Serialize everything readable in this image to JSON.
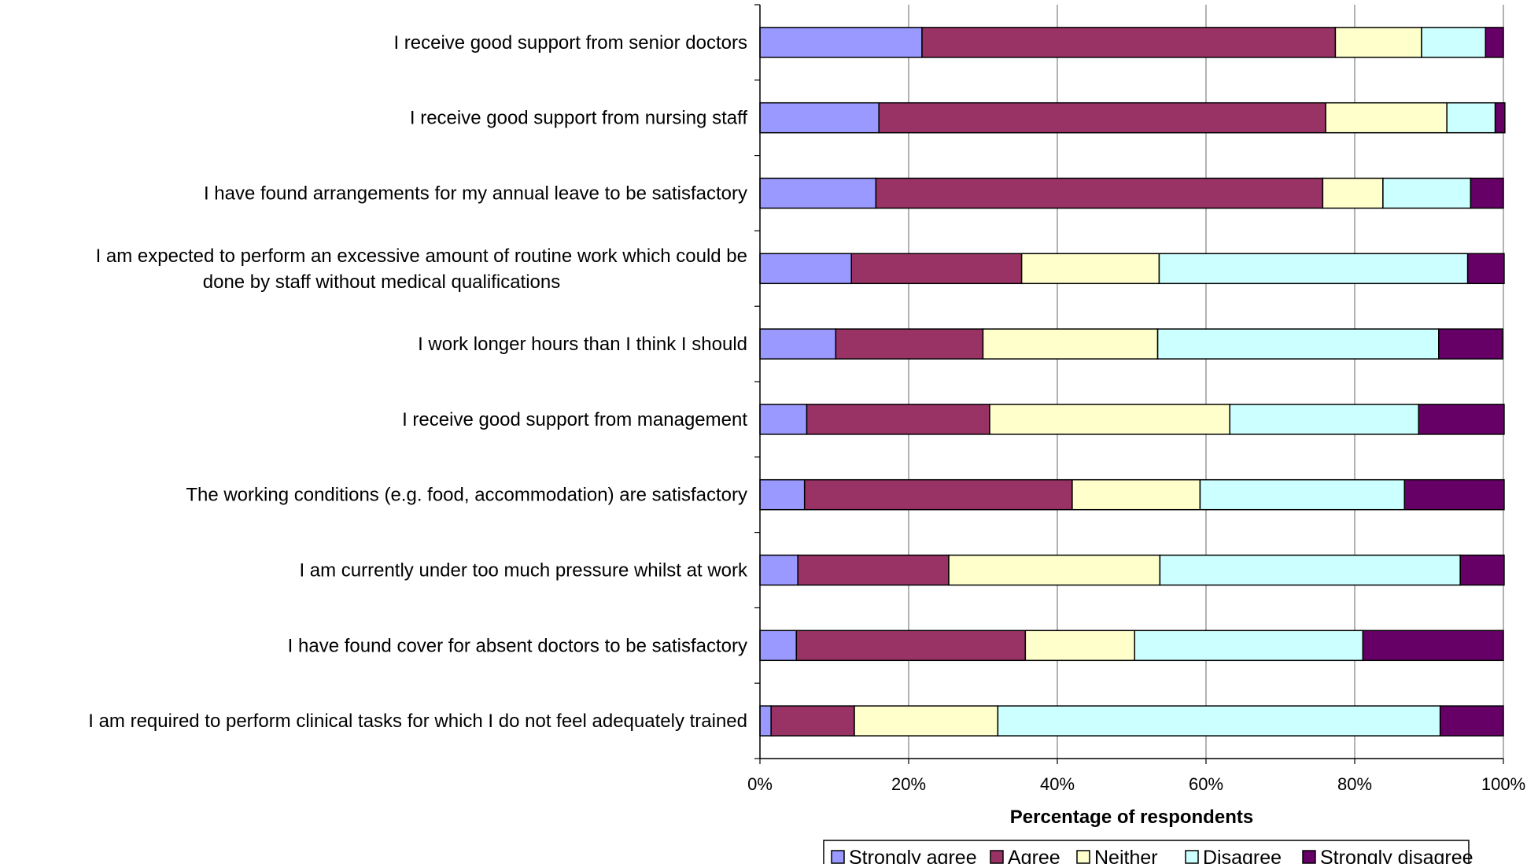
{
  "chart_data": {
    "type": "bar",
    "orientation": "horizontal",
    "stacked": true,
    "percent_stacked": true,
    "xlabel": "Percentage of respondents",
    "ylabel": "",
    "xlim": [
      0,
      100
    ],
    "x_ticks": [
      "0%",
      "20%",
      "40%",
      "60%",
      "80%",
      "100%"
    ],
    "grid": "vertical",
    "legend_position": "bottom-right",
    "categories": [
      [
        "I receive good support from senior doctors"
      ],
      [
        "I receive good support from nursing staff"
      ],
      [
        "I have found arrangements for my annual leave to be satisfactory"
      ],
      [
        "I am expected to perform an excessive amount of routine work which could be",
        "done by staff without medical qualifications"
      ],
      [
        "I work longer hours than I think I should"
      ],
      [
        "I receive good support from management"
      ],
      [
        "The working conditions (e.g. food, accommodation) are satisfactory"
      ],
      [
        "I am currently under too much pressure whilst at work"
      ],
      [
        "I have found cover for absent doctors to be satisfactory"
      ],
      [
        "I am required to perform clinical tasks for which I do not feel adequately trained"
      ]
    ],
    "series": [
      {
        "name": "Strongly agree",
        "color": "#9999ff",
        "values": [
          21.8,
          16.0,
          15.6,
          12.3,
          10.2,
          6.3,
          6.0,
          5.1,
          4.9,
          1.5
        ]
      },
      {
        "name": "Agree",
        "color": "#993366",
        "values": [
          55.6,
          60.1,
          60.1,
          22.9,
          19.8,
          24.6,
          36.0,
          20.3,
          30.8,
          11.2
        ]
      },
      {
        "name": "Neither",
        "color": "#ffffcc",
        "values": [
          11.6,
          16.3,
          8.1,
          18.5,
          23.5,
          32.3,
          17.2,
          28.4,
          14.7,
          19.3
        ]
      },
      {
        "name": "Disagree",
        "color": "#ccffff",
        "values": [
          8.6,
          6.5,
          11.8,
          41.5,
          37.8,
          25.4,
          27.5,
          40.4,
          30.7,
          59.5
        ]
      },
      {
        "name": "Strongly disagree",
        "color": "#660066",
        "values": [
          2.4,
          1.3,
          4.4,
          4.9,
          8.6,
          11.5,
          13.4,
          5.9,
          18.9,
          8.5
        ]
      }
    ]
  }
}
